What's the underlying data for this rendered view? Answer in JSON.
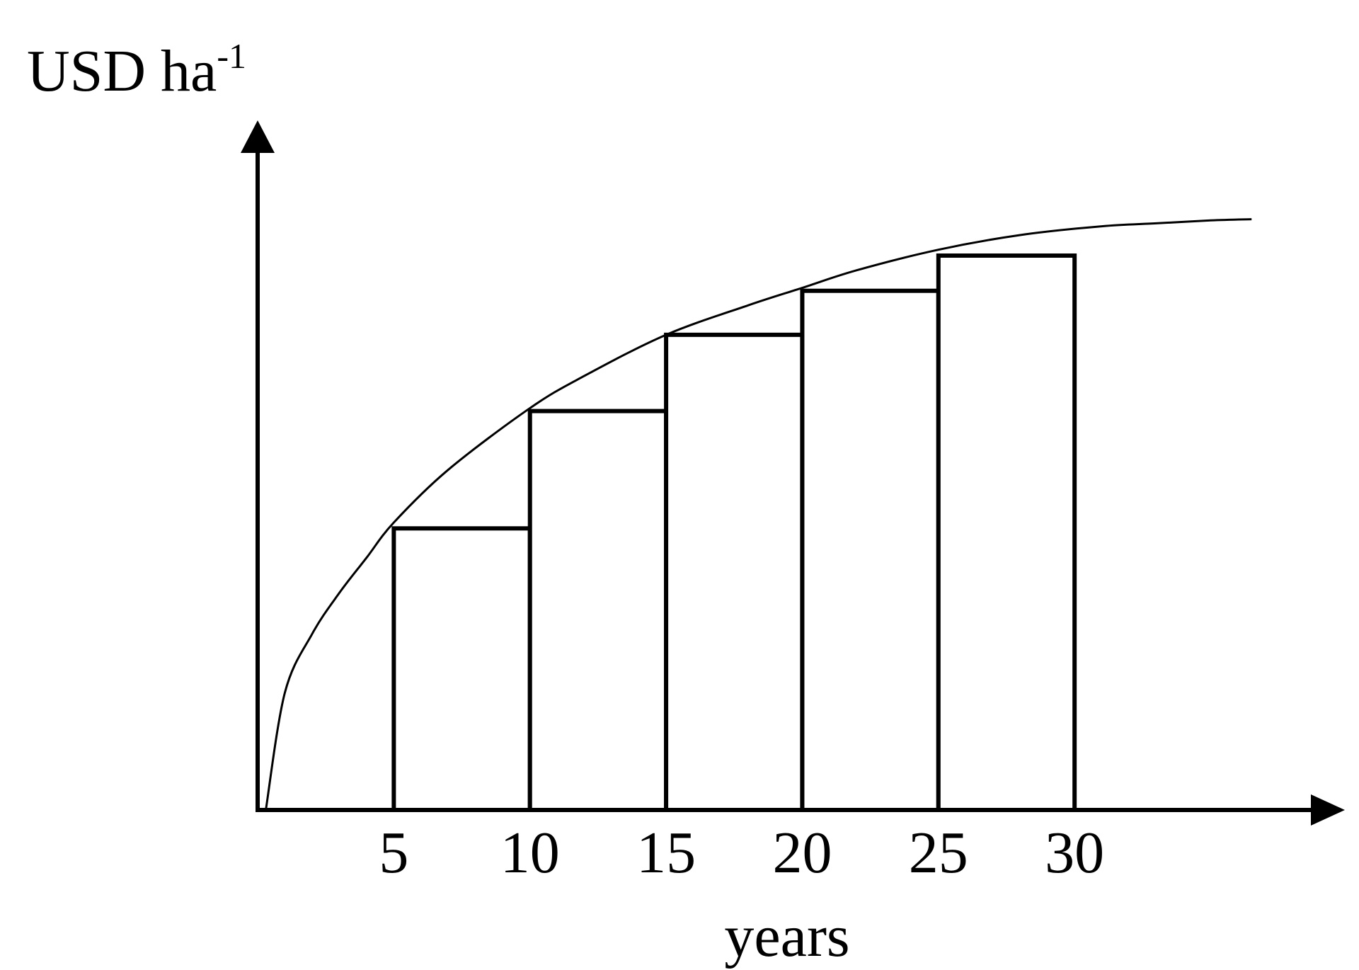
{
  "chart_data": {
    "type": "bar",
    "ylabel": "USD ha",
    "ylabel_superscript": "-1",
    "xlabel": "years",
    "x_ticks": [
      "5",
      "10",
      "15",
      "20",
      "25",
      "30"
    ],
    "xlim": [
      0,
      45
    ],
    "ylim": [
      0,
      1.12
    ],
    "bars": [
      {
        "x_start": 5,
        "x_end": 10,
        "value": 0.48
      },
      {
        "x_start": 10,
        "x_end": 15,
        "value": 0.68
      },
      {
        "x_start": 15,
        "x_end": 20,
        "value": 0.81
      },
      {
        "x_start": 20,
        "x_end": 25,
        "value": 0.885
      },
      {
        "x_start": 25,
        "x_end": 30,
        "value": 0.945
      }
    ],
    "curve": [
      [
        0.3,
        0.0
      ],
      [
        1,
        0.2
      ],
      [
        2,
        0.3
      ],
      [
        3,
        0.37
      ],
      [
        4,
        0.43
      ],
      [
        5,
        0.49
      ],
      [
        7,
        0.58
      ],
      [
        10,
        0.685
      ],
      [
        12,
        0.74
      ],
      [
        15,
        0.81
      ],
      [
        18,
        0.86
      ],
      [
        20,
        0.89
      ],
      [
        22,
        0.92
      ],
      [
        25,
        0.955
      ],
      [
        28,
        0.98
      ],
      [
        31,
        0.995
      ],
      [
        33,
        1.0
      ],
      [
        35,
        1.005
      ],
      [
        36.5,
        1.007
      ]
    ],
    "grid": false,
    "colors": {
      "stroke": "#000000",
      "bar_fill": "#ffffff",
      "background": "#ffffff"
    }
  }
}
